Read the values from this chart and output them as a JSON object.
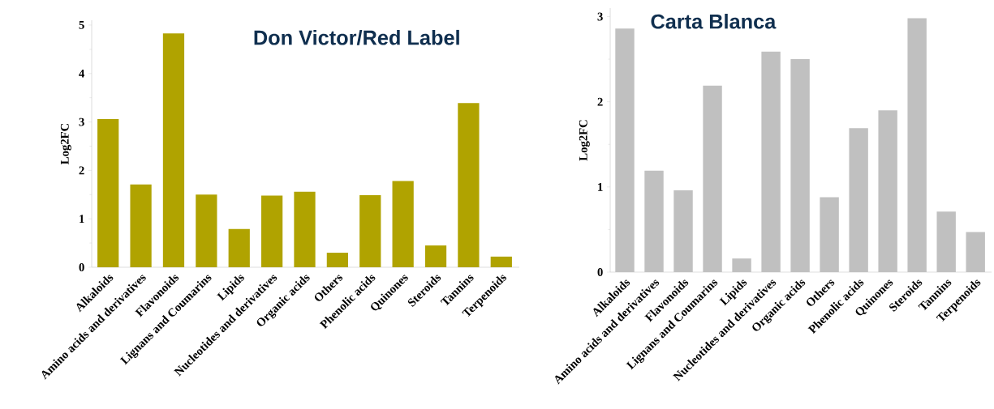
{
  "chart_data": [
    {
      "type": "bar",
      "title": "Don Victor/Red Label",
      "ylabel": "Log2FC",
      "categories": [
        "Alkaloids",
        "Amino acids and derivatives",
        "Flavonoids",
        "Lignans and Coumarins",
        "Lipids",
        "Nucleotides and derivatives",
        "Organic acids",
        "Others",
        "Phenolic acids",
        "Quinones",
        "Steroids",
        "Tannins",
        "Terpenoids"
      ],
      "values": [
        3.06,
        1.71,
        4.83,
        1.5,
        0.79,
        1.48,
        1.56,
        0.3,
        1.49,
        1.78,
        0.45,
        3.39,
        0.22
      ],
      "color": "#b0a300",
      "ylim": [
        0,
        5.1
      ],
      "yticks": [
        0,
        1,
        2,
        3,
        4,
        5
      ]
    },
    {
      "type": "bar",
      "title": "Carta Blanca",
      "ylabel": "Log2FC",
      "categories": [
        "Alkaloids",
        "Amino acids and derivatives",
        "Flavonoids",
        "Lignans and Coumarins",
        "Lipids",
        "Nucleotides and derivatives",
        "Organic acids",
        "Others",
        "Phenolic acids",
        "Quinones",
        "Steroids",
        "Tannins",
        "Terpenoids"
      ],
      "values": [
        2.86,
        1.19,
        0.96,
        2.19,
        0.16,
        2.59,
        2.5,
        0.88,
        1.69,
        1.9,
        2.98,
        0.71,
        0.47
      ],
      "color": "#c0c0c0",
      "ylim": [
        0,
        3.1
      ],
      "yticks": [
        0,
        1,
        2,
        3
      ]
    }
  ]
}
